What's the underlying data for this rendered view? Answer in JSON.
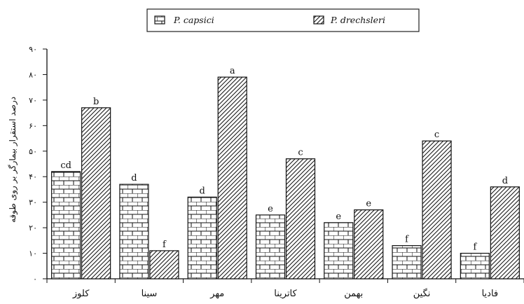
{
  "chart_data": {
    "type": "bar",
    "categories": [
      "کلوز",
      "سینا",
      "مهر",
      "کاترینا",
      "بهمن",
      "نگین",
      "فادیا"
    ],
    "series": [
      {
        "name": "P. capsici",
        "pattern": "brick",
        "values": [
          42,
          37,
          32,
          25,
          22,
          13,
          10
        ],
        "labels": [
          "cd",
          "d",
          "d",
          "e",
          "e",
          "f",
          "f"
        ]
      },
      {
        "name": "P. drechsleri",
        "pattern": "hatch",
        "values": [
          67,
          11,
          79,
          47,
          27,
          54,
          36
        ],
        "labels": [
          "b",
          "f",
          "a",
          "c",
          "e",
          "c",
          "d"
        ]
      }
    ],
    "title": "",
    "xlabel": "",
    "ylabel": "درصد استقرار بیمارگر بر روی طوقه",
    "ylim": [
      0,
      90
    ],
    "yticks": [
      0,
      10,
      20,
      30,
      40,
      50,
      60,
      70,
      80,
      90
    ],
    "ytick_labels": [
      "۰",
      "۱۰",
      "۲۰",
      "۳۰",
      "۴۰",
      "۵۰",
      "۶۰",
      "۷۰",
      "۸۰",
      "۹۰"
    ],
    "legend_position": "top",
    "grid": false,
    "colors": {
      "outline": "#111111",
      "fill_background": "#ffffff"
    }
  }
}
